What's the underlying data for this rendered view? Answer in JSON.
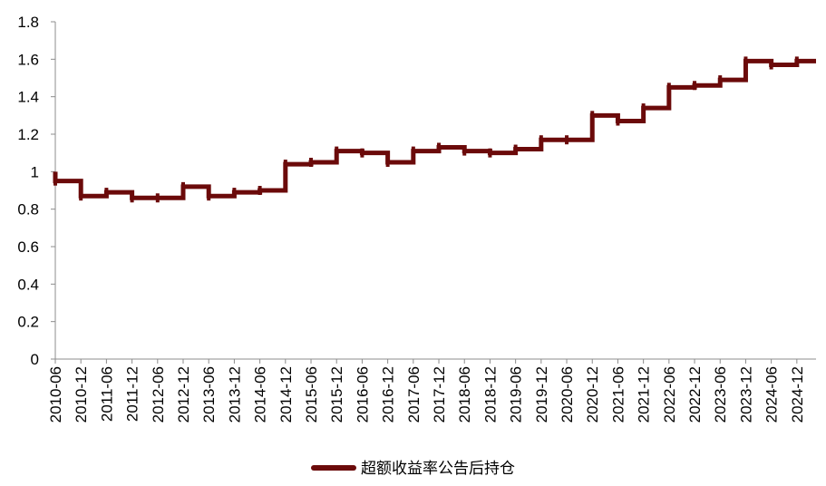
{
  "chart_data": {
    "type": "line",
    "title": "",
    "xlabel": "",
    "ylabel": "",
    "ylim": [
      0,
      1.8
    ],
    "y_ticks": [
      "0",
      "0.2",
      "0.4",
      "0.6",
      "0.8",
      "1",
      "1.2",
      "1.4",
      "1.6",
      "1.8"
    ],
    "x_tick_labels": [
      "2010-06",
      "2010-12",
      "2011-06",
      "2011-12",
      "2012-06",
      "2012-12",
      "2013-06",
      "2013-12",
      "2014-06",
      "2014-12",
      "2015-06",
      "2015-12",
      "2016-06",
      "2016-12",
      "2017-06",
      "2017-12",
      "2018-06",
      "2018-12",
      "2019-06",
      "2019-12",
      "2020-06",
      "2020-12",
      "2021-06",
      "2021-12",
      "2022-06",
      "2022-12",
      "2023-06",
      "2023-12",
      "2024-06",
      "2024-12"
    ],
    "grid": false,
    "legend_position": "bottom",
    "series": [
      {
        "name": "超额收益率公告后持仓",
        "color": "#6b0a0a",
        "step": true,
        "x": [
          "2010-06",
          "2010-12",
          "2011-06",
          "2011-12",
          "2012-06",
          "2012-12",
          "2013-06",
          "2013-12",
          "2014-06",
          "2014-12",
          "2015-06",
          "2015-12",
          "2016-06",
          "2016-12",
          "2017-06",
          "2017-12",
          "2018-06",
          "2018-12",
          "2019-06",
          "2019-12",
          "2020-06",
          "2020-12",
          "2021-06",
          "2021-12",
          "2022-06",
          "2022-12",
          "2023-06",
          "2023-12",
          "2024-06",
          "2024-12"
        ],
        "values": [
          0.95,
          0.87,
          0.89,
          0.86,
          0.86,
          0.92,
          0.87,
          0.89,
          0.9,
          1.04,
          1.05,
          1.11,
          1.1,
          1.05,
          1.11,
          1.13,
          1.11,
          1.1,
          1.12,
          1.17,
          1.17,
          1.3,
          1.27,
          1.34,
          1.45,
          1.46,
          1.49,
          1.59,
          1.57,
          1.59
        ]
      }
    ]
  }
}
